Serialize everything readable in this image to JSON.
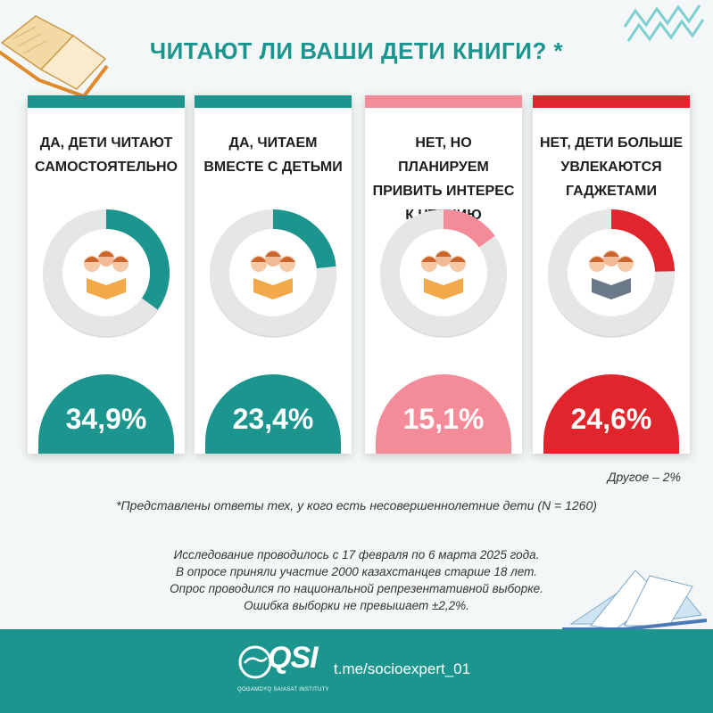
{
  "title": "ЧИТАЮТ ЛИ ВАШИ ДЕТИ КНИГИ? *",
  "colors": {
    "teal": "#1b958d",
    "pink": "#f48b98",
    "red": "#e0252c",
    "ring_gray": "#e6e6e6"
  },
  "chart_data": {
    "type": "pie",
    "categories": [
      "ДА, ДЕТИ ЧИТАЮТ САМОСТОЯТЕЛЬНО",
      "ДА, ЧИТАЕМ ВМЕСТЕ С ДЕТЬМИ",
      "НЕТ, НО ПЛАНИРУЕМ ПРИВИТЬ ИНТЕРЕС К ЧТЕНИЮ",
      "НЕТ, ДЕТИ БОЛЬШЕ УВЛЕКАЮТСЯ ГАДЖЕТАМИ"
    ],
    "values": [
      34.9,
      23.4,
      15.1,
      24.6
    ],
    "labels": [
      "34,9%",
      "23,4%",
      "15,1%",
      "24,6%"
    ],
    "colors": [
      "#1b958d",
      "#1b958d",
      "#f48b98",
      "#e0252c"
    ],
    "other": "Другое – 2%"
  },
  "cards": [
    {
      "lines": [
        "ДА, ДЕТИ ЧИТАЮТ",
        "САМОСТОЯТЕЛЬНО"
      ],
      "image": "children-reading-books-illustration"
    },
    {
      "lines": [
        "ДА, ЧИТАЕМ",
        "ВМЕСТЕ С ДЕТЬМИ"
      ],
      "image": "parent-reading-with-children-illustration"
    },
    {
      "lines": [
        "НЕТ, НО ПЛАНИРУЕМ",
        "ПРИВИТЬ ИНТЕРЕС",
        "К ЧТЕНИЮ"
      ],
      "image": "mother-and-child-with-book-illustration"
    },
    {
      "lines": [
        "НЕТ, ДЕТИ БОЛЬШЕ",
        "УВЛЕКАЮТСЯ",
        "ГАДЖЕТАМИ"
      ],
      "image": "children-with-gadgets-illustration"
    }
  ],
  "footnote": "*Представлены ответы тех, у кого есть несовершеннолетние дети (N = 1260)",
  "methodology": [
    "Исследование проводилось с 17 февраля по 6 марта 2025 года.",
    "В опросе приняли участие 2000 казахстанцев старше 18 лет.",
    "Опрос проводился по национальной репрезентативной выборке.",
    "Ошибка выборки не превышает ±2,2%."
  ],
  "footer": {
    "logo": "QSI",
    "logo_sub": "QOGAMDYQ SAIASAT INSTITUTY",
    "link": "t.me/socioexpert_01"
  }
}
